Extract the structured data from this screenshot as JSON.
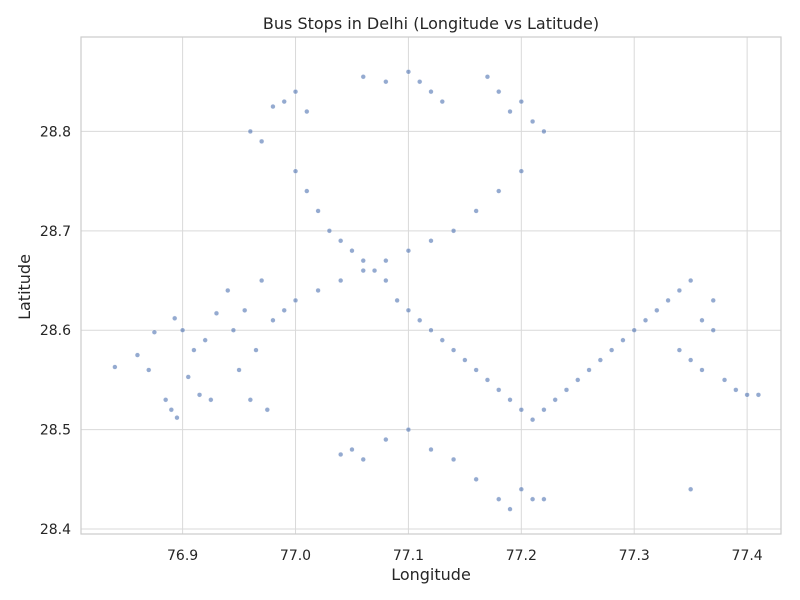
{
  "chart_data": {
    "type": "scatter",
    "title": "Bus Stops in Delhi (Longitude vs Latitude)",
    "xlabel": "Longitude",
    "ylabel": "Latitude",
    "xlim": [
      76.81,
      77.43
    ],
    "ylim": [
      28.395,
      28.895
    ],
    "xticks": [
      76.9,
      77.0,
      77.1,
      77.2,
      77.3,
      77.4
    ],
    "yticks": [
      28.4,
      28.5,
      28.6,
      28.7,
      28.8
    ],
    "xtick_labels": [
      "76.9",
      "77.0",
      "77.1",
      "77.2",
      "77.3",
      "77.4"
    ],
    "ytick_labels": [
      "28.4",
      "28.5",
      "28.6",
      "28.7",
      "28.8"
    ],
    "grid": true,
    "point_color": "#4c72b0",
    "point_alpha": 0.6,
    "series": [
      {
        "points": [
          [
            76.84,
            28.563
          ],
          [
            76.86,
            28.575
          ],
          [
            76.87,
            28.56
          ],
          [
            76.875,
            28.598
          ],
          [
            76.885,
            28.53
          ],
          [
            76.89,
            28.52
          ],
          [
            76.893,
            28.612
          ],
          [
            76.895,
            28.512
          ],
          [
            76.9,
            28.6
          ],
          [
            76.905,
            28.553
          ],
          [
            76.91,
            28.58
          ],
          [
            76.915,
            28.535
          ],
          [
            76.92,
            28.59
          ],
          [
            76.925,
            28.53
          ],
          [
            76.93,
            28.617
          ],
          [
            76.94,
            28.64
          ],
          [
            76.945,
            28.6
          ],
          [
            76.95,
            28.56
          ],
          [
            76.955,
            28.62
          ],
          [
            76.96,
            28.53
          ],
          [
            76.965,
            28.58
          ],
          [
            76.97,
            28.65
          ],
          [
            76.975,
            28.52
          ],
          [
            76.98,
            28.61
          ],
          [
            76.99,
            28.62
          ],
          [
            77.0,
            28.63
          ],
          [
            77.02,
            28.64
          ],
          [
            77.04,
            28.65
          ],
          [
            77.06,
            28.66
          ],
          [
            77.08,
            28.67
          ],
          [
            77.1,
            28.68
          ],
          [
            77.12,
            28.69
          ],
          [
            77.14,
            28.7
          ],
          [
            77.16,
            28.72
          ],
          [
            77.18,
            28.74
          ],
          [
            77.2,
            28.76
          ],
          [
            76.96,
            28.8
          ],
          [
            76.97,
            28.79
          ],
          [
            76.98,
            28.825
          ],
          [
            76.99,
            28.83
          ],
          [
            77.0,
            28.84
          ],
          [
            77.01,
            28.82
          ],
          [
            77.0,
            28.76
          ],
          [
            77.01,
            28.74
          ],
          [
            77.02,
            28.72
          ],
          [
            77.03,
            28.7
          ],
          [
            77.04,
            28.69
          ],
          [
            77.05,
            28.68
          ],
          [
            77.06,
            28.67
          ],
          [
            77.07,
            28.66
          ],
          [
            77.08,
            28.65
          ],
          [
            77.09,
            28.63
          ],
          [
            77.1,
            28.62
          ],
          [
            77.11,
            28.61
          ],
          [
            77.12,
            28.6
          ],
          [
            77.13,
            28.59
          ],
          [
            77.14,
            28.58
          ],
          [
            77.15,
            28.57
          ],
          [
            77.16,
            28.56
          ],
          [
            77.17,
            28.55
          ],
          [
            77.18,
            28.54
          ],
          [
            77.19,
            28.53
          ],
          [
            77.2,
            28.52
          ],
          [
            77.21,
            28.51
          ],
          [
            77.22,
            28.52
          ],
          [
            77.23,
            28.53
          ],
          [
            77.24,
            28.54
          ],
          [
            77.25,
            28.55
          ],
          [
            77.26,
            28.56
          ],
          [
            77.27,
            28.57
          ],
          [
            77.28,
            28.58
          ],
          [
            77.29,
            28.59
          ],
          [
            77.3,
            28.6
          ],
          [
            77.31,
            28.61
          ],
          [
            77.32,
            28.62
          ],
          [
            77.33,
            28.63
          ],
          [
            77.34,
            28.64
          ],
          [
            77.35,
            28.65
          ],
          [
            77.06,
            28.855
          ],
          [
            77.08,
            28.85
          ],
          [
            77.1,
            28.86
          ],
          [
            77.11,
            28.85
          ],
          [
            77.12,
            28.84
          ],
          [
            77.13,
            28.83
          ],
          [
            77.17,
            28.855
          ],
          [
            77.18,
            28.84
          ],
          [
            77.19,
            28.82
          ],
          [
            77.2,
            28.83
          ],
          [
            77.21,
            28.81
          ],
          [
            77.22,
            28.8
          ],
          [
            77.04,
            28.475
          ],
          [
            77.05,
            28.48
          ],
          [
            77.06,
            28.47
          ],
          [
            77.08,
            28.49
          ],
          [
            77.1,
            28.5
          ],
          [
            77.12,
            28.48
          ],
          [
            77.14,
            28.47
          ],
          [
            77.16,
            28.45
          ],
          [
            77.18,
            28.43
          ],
          [
            77.19,
            28.42
          ],
          [
            77.2,
            28.44
          ],
          [
            77.21,
            28.43
          ],
          [
            77.22,
            28.43
          ],
          [
            77.35,
            28.44
          ],
          [
            77.36,
            28.56
          ],
          [
            77.37,
            28.6
          ],
          [
            77.38,
            28.55
          ],
          [
            77.39,
            28.54
          ],
          [
            77.4,
            28.535
          ],
          [
            77.41,
            28.535
          ],
          [
            77.37,
            28.63
          ],
          [
            77.36,
            28.61
          ],
          [
            77.35,
            28.57
          ],
          [
            77.34,
            28.58
          ]
        ]
      }
    ]
  }
}
